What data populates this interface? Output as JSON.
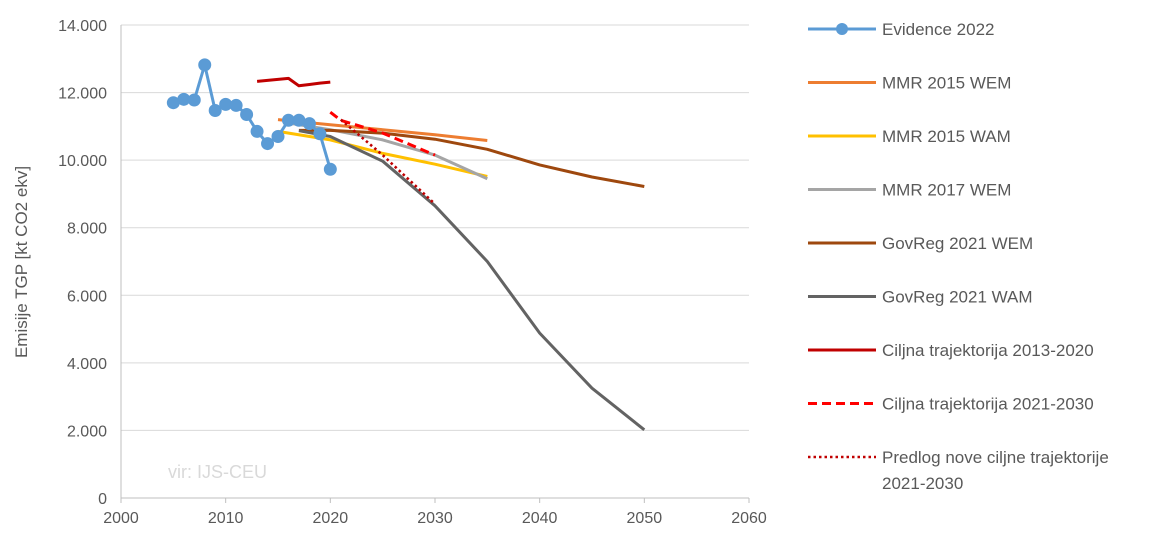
{
  "chart_data": {
    "type": "line",
    "ylabel": "Emisije TGP [kt CO2 ekv]",
    "xlabel": "",
    "xlim": [
      2000,
      2060
    ],
    "ylim": [
      0,
      14000
    ],
    "x_ticks": [
      "2000",
      "2010",
      "2020",
      "2030",
      "2040",
      "2050",
      "2060"
    ],
    "y_ticks": [
      "0",
      "2.000",
      "4.000",
      "6.000",
      "8.000",
      "10.000",
      "12.000",
      "14.000"
    ],
    "grid": "horizontal",
    "legend_position": "right",
    "note": "vir: IJS-CEU",
    "series": [
      {
        "name": "Evidence 2022",
        "color": "#5b9bd5",
        "style": "solid-markers",
        "x": [
          2005,
          2006,
          2007,
          2008,
          2009,
          2010,
          2011,
          2012,
          2013,
          2014,
          2015,
          2016,
          2017,
          2018,
          2019,
          2020
        ],
        "y": [
          11700,
          11800,
          11780,
          12820,
          11470,
          11650,
          11620,
          11350,
          10850,
          10490,
          10700,
          11180,
          11180,
          11080,
          10780,
          9730
        ]
      },
      {
        "name": "MMR 2015 WEM",
        "color": "#ed7d31",
        "style": "solid",
        "x": [
          2015,
          2020,
          2025,
          2030,
          2035
        ],
        "y": [
          11200,
          11050,
          10900,
          10750,
          10580
        ]
      },
      {
        "name": "MMR 2015 WAM",
        "color": "#ffc000",
        "style": "solid",
        "x": [
          2015,
          2020,
          2025,
          2030,
          2035
        ],
        "y": [
          10850,
          10600,
          10200,
          9880,
          9520
        ]
      },
      {
        "name": "MMR 2017 WEM",
        "color": "#a5a5a5",
        "style": "solid",
        "x": [
          2016,
          2020,
          2025,
          2030,
          2035
        ],
        "y": [
          11100,
          10900,
          10600,
          10150,
          9450
        ]
      },
      {
        "name": "GovReg 2021 WEM",
        "color": "#9e480e",
        "style": "solid",
        "x": [
          2017,
          2020,
          2025,
          2030,
          2035,
          2040,
          2045,
          2050
        ],
        "y": [
          10880,
          10880,
          10800,
          10620,
          10320,
          9860,
          9500,
          9220
        ]
      },
      {
        "name": "GovReg 2021 WAM",
        "color": "#636363",
        "style": "solid",
        "x": [
          2017,
          2020,
          2025,
          2030,
          2035,
          2040,
          2045,
          2050
        ],
        "y": [
          10870,
          10700,
          9970,
          8650,
          7000,
          4880,
          3250,
          2020
        ]
      },
      {
        "name": "Ciljna trajektorija 2013-2020",
        "color": "#c00000",
        "style": "solid",
        "x": [
          2013,
          2014,
          2015,
          2016,
          2017,
          2018,
          2019,
          2020
        ],
        "y": [
          12330,
          12360,
          12390,
          12420,
          12200,
          12240,
          12280,
          12310
        ]
      },
      {
        "name": "Ciljna trajektorija 2021-2030",
        "color": "#ff0000",
        "style": "dashed",
        "x": [
          2020,
          2021,
          2025,
          2030
        ],
        "y": [
          11420,
          11180,
          10800,
          10150
        ]
      },
      {
        "name": "Predlog nove ciljne trajektorije 2021-2030",
        "name_lines": [
          "Predlog nove ciljne trajektorije",
          "2021-2030"
        ],
        "color": "#c00000",
        "style": "dotted",
        "x": [
          2021,
          2025,
          2030
        ],
        "y": [
          11200,
          10150,
          8700
        ]
      }
    ]
  }
}
